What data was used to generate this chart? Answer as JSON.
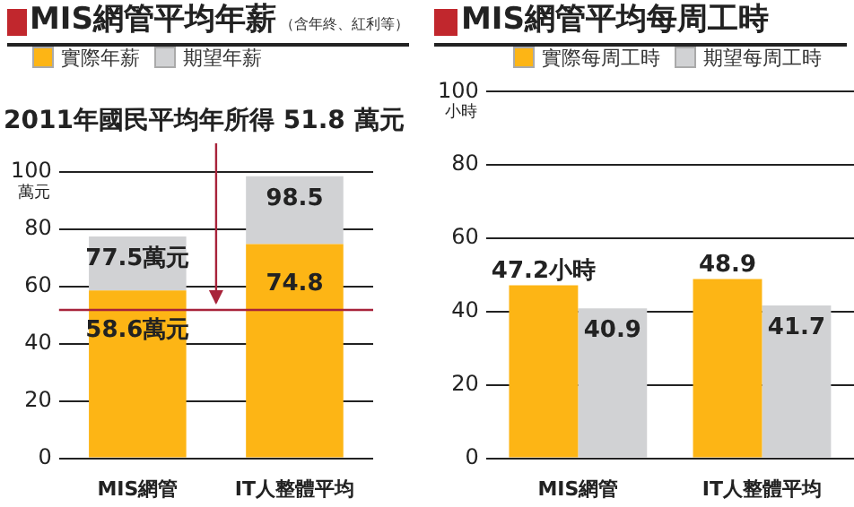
{
  "chart_data": [
    {
      "type": "bar",
      "title": "MIS網管平均年薪",
      "subtitle": "（含年終、紅利等）",
      "ylabel": "萬元",
      "categories": [
        "MIS網管",
        "IT人整體平均"
      ],
      "stacked": true,
      "series": [
        {
          "name": "實際年薪",
          "color": "#fdb515",
          "values": [
            58.6,
            74.8
          ],
          "value_labels": [
            "58.6萬元",
            "74.8"
          ]
        },
        {
          "name": "期望年薪",
          "color": "#d1d2d4",
          "values": [
            18.9,
            23.7
          ]
        }
      ],
      "totals": [
        "77.5萬元",
        "98.5"
      ],
      "ref_lines": [
        {
          "axis": "y",
          "value": 51.8,
          "label": "2011年國民平均年所得 51.8 萬元",
          "color": "#a8233a"
        }
      ],
      "ylim": [
        0,
        100
      ],
      "yticks": [
        0,
        20,
        40,
        60,
        80,
        100
      ],
      "grid": "y",
      "legend": "top left"
    },
    {
      "type": "bar",
      "title": "MIS網管平均每周工時",
      "ylabel": "小時",
      "categories": [
        "MIS網管",
        "IT人整體平均"
      ],
      "series": [
        {
          "name": "實際每周工時",
          "color": "#fdb515",
          "values": [
            47.2,
            48.9
          ],
          "value_labels": [
            "47.2小時",
            "48.9"
          ]
        },
        {
          "name": "期望每周工時",
          "color": "#d1d2d4",
          "values": [
            40.9,
            41.7
          ],
          "value_labels": [
            "40.9",
            "41.7"
          ]
        }
      ],
      "ylim": [
        0,
        100
      ],
      "yticks": [
        0,
        20,
        40,
        60,
        80,
        100
      ],
      "grid": "y",
      "legend": "top left"
    }
  ]
}
